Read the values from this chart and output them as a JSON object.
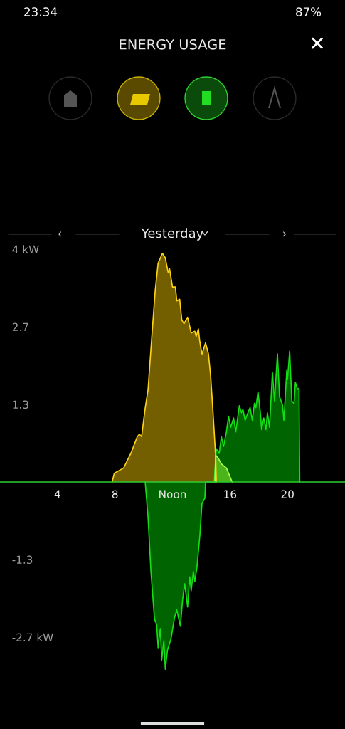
{
  "chart_data": {
    "type": "area",
    "title": "ENERGY USAGE",
    "subtitle": "Yesterday",
    "annotations": [
      "23:34",
      "87%",
      "‹",
      "›",
      "✕"
    ],
    "series": [
      {
        "color": "#7a6400",
        "x": [
          7.8,
          7.95,
          8.6,
          9.1,
          9.55,
          9.7,
          9.85,
          10.1,
          10.3,
          10.5,
          10.8,
          11.0,
          11.3,
          11.5,
          11.7,
          11.8,
          12.0,
          12.2,
          12.3,
          12.5,
          12.65,
          12.8,
          13.05,
          13.3,
          13.55,
          13.65,
          13.8,
          13.9,
          14.05,
          14.3,
          14.5,
          14.65,
          14.8,
          15.0,
          15.05
        ],
        "values": [
          0,
          0.15,
          0.24,
          0.49,
          0.78,
          0.82,
          0.78,
          1.27,
          1.59,
          2.29,
          3.3,
          3.76,
          3.93,
          3.85,
          3.6,
          3.66,
          3.35,
          3.35,
          3.11,
          3.14,
          2.78,
          2.72,
          2.83,
          2.56,
          2.59,
          2.5,
          2.63,
          2.41,
          2.2,
          2.39,
          2.2,
          1.83,
          1.27,
          0.45,
          0
        ]
      },
      {
        "color": "#006a00",
        "x": [
          10.1,
          10.3,
          10.5,
          10.75,
          10.9,
          11.0,
          11.15,
          11.25,
          11.4,
          11.5,
          11.65,
          11.9,
          12.15,
          12.3,
          12.55,
          12.7,
          12.85,
          13.05,
          13.2,
          13.3,
          13.45,
          13.55,
          13.7,
          13.9,
          14.05,
          14.25,
          14.3,
          14.9,
          15.05,
          15.25,
          15.4,
          15.55,
          15.75,
          15.9,
          16.05,
          16.25,
          16.4,
          16.65,
          16.8,
          16.9,
          17.05,
          17.2,
          17.4,
          17.55,
          17.7,
          17.8,
          17.95,
          18.1,
          18.2,
          18.35,
          18.5,
          18.6,
          18.75,
          18.95,
          19.1,
          19.3,
          19.45,
          19.65,
          19.75,
          19.95,
          20.0,
          20.15,
          20.3,
          20.45,
          20.55,
          20.7,
          20.8,
          20.85
        ],
        "values": [
          0,
          -0.61,
          -1.54,
          -2.36,
          -2.45,
          -2.85,
          -2.52,
          -3.06,
          -2.73,
          -3.22,
          -2.89,
          -2.69,
          -2.32,
          -2.2,
          -2.48,
          -2.03,
          -1.75,
          -2.15,
          -1.63,
          -1.87,
          -1.54,
          -1.71,
          -1.47,
          -0.93,
          -0.37,
          -0.28,
          0,
          0,
          0.57,
          0.49,
          0.78,
          0.61,
          0.86,
          1.13,
          0.94,
          1.1,
          0.86,
          1.31,
          1.19,
          1.25,
          1.06,
          1.16,
          1.28,
          1.06,
          1.35,
          1.28,
          1.55,
          1.22,
          0.9,
          1.1,
          0.9,
          1.19,
          0.94,
          1.88,
          1.39,
          2.2,
          1.46,
          1.33,
          1.06,
          1.92,
          1.76,
          2.25,
          1.39,
          1.35,
          1.71,
          1.59,
          1.61,
          0
        ]
      },
      {
        "color": "#4fb81c",
        "x": [
          14.95,
          15.0,
          15.2,
          15.4,
          15.75,
          16.15
        ],
        "values": [
          0,
          0.46,
          0.4,
          0.31,
          0.24,
          0
        ]
      }
    ],
    "xlim": [
      0,
      24
    ],
    "xticks": [
      4,
      8,
      {
        "value": 12,
        "label": "Noon"
      },
      16,
      20
    ],
    "ylim": [
      -4.245,
      8.282
    ],
    "yticks": [
      {
        "value": 4,
        "label": "4 kW"
      },
      {
        "value": 2.667,
        "label": "2.7"
      },
      {
        "value": 1.333,
        "label": "1.3"
      },
      {
        "value": -1.333,
        "label": "-1.3"
      },
      {
        "value": -2.667,
        "label": "-2.7 kW"
      }
    ],
    "grid": false,
    "legend": false
  }
}
